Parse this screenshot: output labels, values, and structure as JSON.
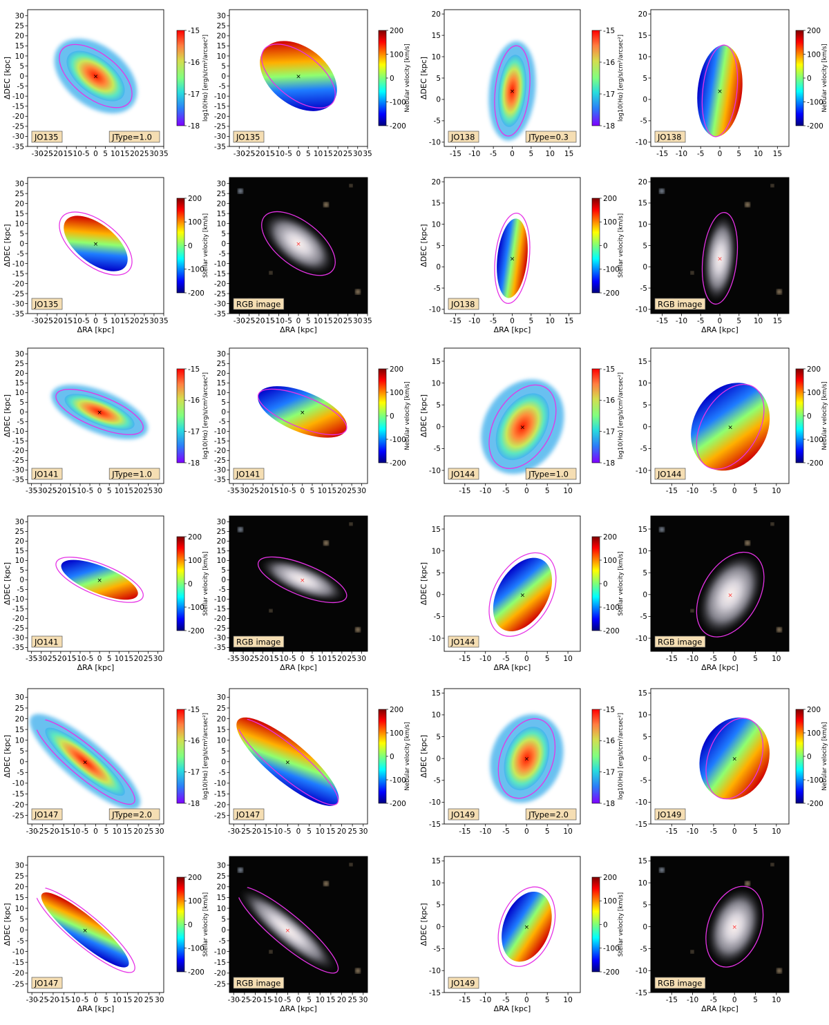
{
  "figure": {
    "ra_label": "ΔRA [kpc]",
    "dec_label": "ΔDEC [kpc]",
    "halpha_cb_label": "log10(Hα) [erg/s/cm²/arcsec²]",
    "nebular_cb_label": "Nebular velocity [km/s]",
    "stellar_cb_label": "Stellar velocity [km/s]",
    "rgb_label": "RGB image"
  },
  "colors": {
    "contour": "#e633e6",
    "tag_fill": "#f5deb3",
    "rgb_background": "#050505"
  },
  "galaxies": [
    {
      "name": "JO135",
      "jtype": "JType=1.0",
      "xlim": [
        -35,
        35
      ],
      "ylim": [
        -35,
        33
      ],
      "xticks": [
        -30,
        -25,
        -20,
        -15,
        -10,
        -5,
        0,
        5,
        10,
        15,
        20,
        25,
        30,
        35
      ],
      "yticks": [
        -35,
        -30,
        -25,
        -20,
        -15,
        -10,
        -5,
        0,
        5,
        10,
        15,
        20,
        25,
        30
      ],
      "ellipse": {
        "cx": 0,
        "cy": 0,
        "a": 22,
        "b": 11,
        "pa": -38
      }
    },
    {
      "name": "JO138",
      "jtype": "JType=0.3",
      "xlim": [
        -18,
        18
      ],
      "ylim": [
        -11,
        21
      ],
      "xticks": [
        -15,
        -10,
        -5,
        0,
        5,
        10,
        15
      ],
      "yticks": [
        -10,
        -5,
        0,
        5,
        10,
        15,
        20
      ],
      "ellipse": {
        "cx": 0,
        "cy": 2,
        "a": 12,
        "b": 4,
        "pa": 84
      }
    },
    {
      "name": "JO141",
      "jtype": "JType=1.0",
      "xlim": [
        -37,
        33
      ],
      "ylim": [
        -37,
        33
      ],
      "xticks": [
        -35,
        -30,
        -25,
        -20,
        -15,
        -10,
        -5,
        0,
        5,
        10,
        15,
        20,
        25,
        30
      ],
      "yticks": [
        -35,
        -30,
        -25,
        -20,
        -15,
        -10,
        -5,
        0,
        5,
        10,
        15,
        20,
        25,
        30
      ],
      "ellipse": {
        "cx": 0,
        "cy": 0,
        "a": 24,
        "b": 8,
        "pa": -22
      }
    },
    {
      "name": "JO144",
      "jtype": "JType=1.0",
      "xlim": [
        -20,
        13
      ],
      "ylim": [
        -13,
        18
      ],
      "xticks": [
        -15,
        -10,
        -5,
        0,
        5,
        10
      ],
      "yticks": [
        -10,
        -5,
        0,
        5,
        10,
        15
      ],
      "ellipse": {
        "cx": -1,
        "cy": 0,
        "a": 11,
        "b": 6.5,
        "pa": 60
      }
    },
    {
      "name": "JO147",
      "jtype": "JType=2.0",
      "xlim": [
        -32,
        32
      ],
      "ylim": [
        -29,
        34
      ],
      "xticks": [
        -30,
        -25,
        -20,
        -15,
        -10,
        -5,
        0,
        5,
        10,
        15,
        20,
        25,
        30
      ],
      "yticks": [
        -25,
        -20,
        -15,
        -10,
        -5,
        0,
        5,
        10,
        15,
        20,
        25,
        30
      ],
      "ellipse": {
        "cx": -5,
        "cy": 0,
        "a": 30,
        "b": 7,
        "pa": -40
      }
    },
    {
      "name": "JO149",
      "jtype": "JType=2.0",
      "xlim": [
        -20,
        13
      ],
      "ylim": [
        -15,
        16
      ],
      "xticks": [
        -15,
        -10,
        -5,
        0,
        5,
        10
      ],
      "yticks": [
        -15,
        -10,
        -5,
        0,
        5,
        10,
        15
      ],
      "ellipse": {
        "cx": 0,
        "cy": 0,
        "a": 10,
        "b": 6,
        "pa": 70
      }
    }
  ],
  "chart_data": {
    "type": "heatmap",
    "panels_per_galaxy": [
      "Hα flux map",
      "Nebular velocity map",
      "Stellar velocity map",
      "RGB image"
    ],
    "halpha_colorbar": {
      "range": [
        -18,
        -15
      ],
      "ticks": [
        -15,
        -16,
        -17,
        -18
      ],
      "colormap": "rainbow"
    },
    "velocity_colorbar": {
      "range": [
        -200,
        200
      ],
      "ticks": [
        200,
        100,
        0,
        -100,
        -200
      ],
      "colormap": "jet"
    }
  }
}
